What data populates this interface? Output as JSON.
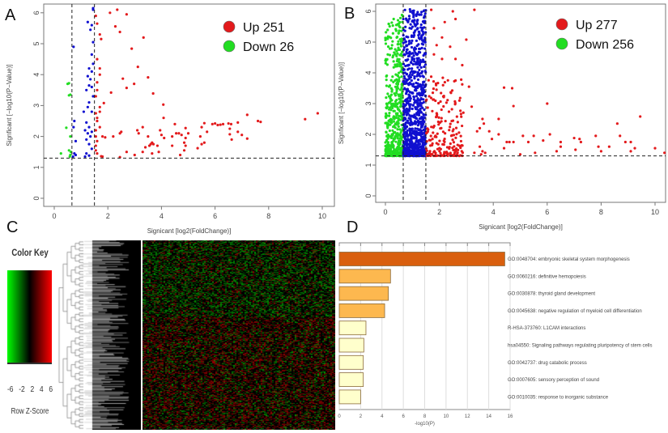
{
  "panels": {
    "A": "A",
    "B": "B",
    "C": "C",
    "D": "D"
  },
  "colors": {
    "up": "#e31a1c",
    "down": "#22dd22",
    "ns": "#1010d0",
    "bar_top": "#d95f0e",
    "bar_mid": "#fdb84f",
    "bar_low": "#ffffcc"
  },
  "chart_data": [
    {
      "panel": "A",
      "type": "scatter",
      "xlabel": "Signicant [log2(FoldChange)]",
      "ylabel": "Signficant [−log10(P−Value)]",
      "xlim": [
        0,
        10
      ],
      "ylim": [
        0,
        6
      ],
      "xticks": [
        0,
        2,
        4,
        6,
        8,
        10
      ],
      "yticks": [
        0,
        1,
        2,
        3,
        4,
        5,
        6
      ],
      "thresholds": {
        "x": [
          0.66,
          1.5
        ],
        "y": 1.3
      },
      "legend": [
        {
          "label": "Up 251",
          "color": "#e31a1c"
        },
        {
          "label": "Down 26",
          "color": "#22dd22"
        }
      ],
      "legend_position": "top-right",
      "series": [
        {
          "group": "up",
          "points": [
            [
              2.08,
              6.0
            ],
            [
              2.35,
              6.1
            ],
            [
              2.7,
              5.95
            ],
            [
              2.28,
              5.56
            ],
            [
              2.45,
              5.38
            ],
            [
              3.33,
              5.2
            ],
            [
              2.89,
              4.84
            ],
            [
              3.12,
              4.25
            ],
            [
              2.56,
              3.87
            ],
            [
              3.5,
              3.91
            ],
            [
              2.98,
              3.7
            ],
            [
              2.7,
              3.57
            ],
            [
              3.69,
              3.39
            ],
            [
              2.12,
              3.42
            ],
            [
              1.85,
              3.08
            ],
            [
              4.07,
              3.03
            ],
            [
              4.08,
              2.6
            ],
            [
              9.83,
              2.75
            ],
            [
              9.36,
              2.56
            ],
            [
              7.2,
              2.7
            ],
            [
              7.6,
              2.5
            ],
            [
              7.7,
              2.47
            ],
            [
              5.9,
              2.4
            ],
            [
              6.0,
              2.42
            ],
            [
              6.1,
              2.37
            ],
            [
              6.2,
              2.38
            ],
            [
              6.3,
              2.4
            ],
            [
              6.5,
              2.42
            ],
            [
              6.6,
              2.4
            ],
            [
              6.55,
              2.25
            ],
            [
              6.55,
              2.07
            ],
            [
              6.62,
              1.9
            ],
            [
              6.85,
              2.45
            ],
            [
              6.85,
              2.15
            ],
            [
              7.0,
              2.05
            ],
            [
              7.2,
              1.93
            ],
            [
              5.6,
              2.43
            ],
            [
              5.5,
              2.3
            ],
            [
              5.7,
              2.15
            ],
            [
              5.45,
              2.0
            ],
            [
              5.6,
              1.8
            ],
            [
              5.5,
              1.75
            ],
            [
              5.35,
              1.62
            ],
            [
              5.0,
              2.1
            ],
            [
              4.9,
              2.27
            ],
            [
              4.9,
              1.95
            ],
            [
              4.85,
              1.8
            ],
            [
              4.9,
              1.7
            ],
            [
              4.85,
              1.55
            ],
            [
              4.7,
              1.4
            ],
            [
              4.75,
              2.05
            ],
            [
              4.65,
              2.1
            ],
            [
              4.55,
              2.1
            ],
            [
              4.5,
              2.4
            ],
            [
              4.4,
              2.0
            ],
            [
              4.4,
              1.7
            ],
            [
              4.1,
              1.95
            ],
            [
              4.0,
              2.05
            ],
            [
              3.95,
              2.2
            ],
            [
              3.9,
              1.5
            ],
            [
              3.85,
              1.7
            ],
            [
              3.7,
              1.75
            ],
            [
              3.65,
              1.8
            ],
            [
              3.6,
              1.75
            ],
            [
              3.55,
              1.7
            ],
            [
              3.65,
              1.45
            ],
            [
              3.5,
              2.0
            ],
            [
              3.4,
              1.65
            ],
            [
              3.3,
              1.5
            ],
            [
              3.3,
              2.3
            ],
            [
              3.1,
              2.2
            ],
            [
              3.15,
              2.1
            ],
            [
              3.0,
              1.4
            ],
            [
              2.7,
              1.5
            ],
            [
              2.5,
              2.15
            ],
            [
              2.45,
              2.1
            ],
            [
              2.45,
              1.33
            ],
            [
              2.2,
              2.0
            ],
            [
              1.9,
              1.97
            ],
            [
              1.8,
              1.35
            ],
            [
              1.75,
              1.36
            ],
            [
              1.8,
              2.0
            ],
            [
              1.55,
              5.9
            ],
            [
              1.6,
              5.65
            ],
            [
              1.7,
              5.3
            ],
            [
              1.75,
              5.15
            ],
            [
              1.6,
              4.5
            ],
            [
              1.7,
              4.2
            ],
            [
              1.7,
              4.0
            ],
            [
              1.6,
              3.75
            ],
            [
              1.6,
              3.5
            ],
            [
              1.55,
              3.3
            ],
            [
              1.7,
              2.95
            ],
            [
              1.7,
              2.8
            ],
            [
              1.55,
              2.75
            ],
            [
              1.6,
              2.6
            ],
            [
              1.6,
              2.5
            ],
            [
              1.7,
              2.3
            ],
            [
              1.55,
              2.2
            ],
            [
              1.55,
              2.0
            ],
            [
              1.6,
              1.85
            ],
            [
              1.55,
              1.7
            ],
            [
              1.55,
              1.55
            ],
            [
              1.6,
              1.45
            ]
          ]
        },
        {
          "group": "down",
          "points": [
            [
              0.5,
              3.7
            ],
            [
              0.55,
              3.72
            ],
            [
              0.6,
              3.35
            ],
            [
              0.55,
              3.33
            ],
            [
              0.45,
              2.28
            ],
            [
              0.6,
              2.0
            ],
            [
              0.25,
              1.45
            ],
            [
              0.55,
              1.55
            ],
            [
              0.6,
              1.4
            ],
            [
              0.58,
              1.35
            ],
            [
              0.62,
              1.5
            ]
          ]
        },
        {
          "group": "ns",
          "points": [
            [
              1.45,
              6.15
            ],
            [
              1.45,
              6.1
            ],
            [
              1.25,
              5.7
            ],
            [
              1.4,
              5.6
            ],
            [
              1.35,
              5.45
            ],
            [
              1.45,
              5.05
            ],
            [
              0.72,
              4.9
            ],
            [
              1.4,
              4.65
            ],
            [
              1.45,
              4.35
            ],
            [
              1.3,
              4.2
            ],
            [
              1.4,
              4.1
            ],
            [
              1.25,
              3.95
            ],
            [
              1.35,
              3.85
            ],
            [
              1.3,
              3.65
            ],
            [
              1.4,
              3.6
            ],
            [
              1.2,
              3.5
            ],
            [
              1.45,
              3.3
            ],
            [
              1.3,
              3.1
            ],
            [
              1.25,
              2.95
            ],
            [
              1.4,
              2.8
            ],
            [
              1.1,
              2.8
            ],
            [
              0.75,
              2.5
            ],
            [
              0.72,
              2.3
            ],
            [
              1.2,
              2.45
            ],
            [
              1.3,
              2.3
            ],
            [
              1.15,
              2.2
            ],
            [
              1.4,
              2.15
            ],
            [
              1.25,
              2.1
            ],
            [
              1.35,
              2.0
            ],
            [
              1.2,
              1.9
            ],
            [
              0.8,
              1.85
            ],
            [
              1.3,
              1.75
            ],
            [
              1.4,
              1.6
            ],
            [
              0.75,
              1.45
            ],
            [
              0.8,
              1.4
            ],
            [
              1.2,
              1.45
            ],
            [
              1.15,
              1.35
            ],
            [
              1.3,
              1.38
            ],
            [
              0.7,
              1.35
            ]
          ]
        }
      ]
    },
    {
      "panel": "B",
      "type": "scatter",
      "xlabel": "Signicant [log2(FoldChange)]",
      "ylabel": "Signficant [−log10(P−Value)]",
      "xlim": [
        0,
        10
      ],
      "ylim": [
        0,
        6
      ],
      "xticks": [
        0,
        2,
        4,
        6,
        8,
        10
      ],
      "yticks": [
        0,
        1,
        2,
        3,
        4,
        5,
        6
      ],
      "thresholds": {
        "x": [
          0.66,
          1.5
        ],
        "y": 1.3
      },
      "legend": [
        {
          "label": "Up 277",
          "color": "#e31a1c"
        },
        {
          "label": "Down 256",
          "color": "#22dd22"
        }
      ],
      "legend_position": "top-right",
      "clusters": [
        {
          "group": "down",
          "x_range": [
            0,
            0.66
          ],
          "y_range": [
            1.3,
            5.9
          ],
          "n": 500
        },
        {
          "group": "ns",
          "x_range": [
            0.66,
            1.5
          ],
          "y_range": [
            1.3,
            6.1
          ],
          "n": 900
        },
        {
          "group": "up",
          "x_range": [
            1.5,
            2.9
          ],
          "y_range": [
            1.3,
            3.9
          ],
          "n": 200
        }
      ],
      "series": [
        {
          "group": "up",
          "points": [
            [
              1.7,
              6.05
            ],
            [
              2.5,
              6.0
            ],
            [
              3.3,
              6.05
            ],
            [
              2.6,
              5.75
            ],
            [
              2.2,
              5.65
            ],
            [
              1.8,
              5.45
            ],
            [
              2.1,
              5.15
            ],
            [
              3.0,
              5.08
            ],
            [
              1.9,
              4.9
            ],
            [
              2.4,
              4.85
            ],
            [
              1.8,
              4.6
            ],
            [
              2.1,
              4.45
            ],
            [
              2.6,
              4.45
            ],
            [
              2.85,
              4.25
            ],
            [
              2.6,
              3.75
            ],
            [
              3.1,
              3.55
            ],
            [
              4.4,
              3.52
            ],
            [
              4.7,
              3.5
            ],
            [
              3.2,
              2.9
            ],
            [
              4.75,
              2.92
            ],
            [
              6.0,
              3.0
            ],
            [
              9.45,
              2.58
            ],
            [
              8.6,
              2.35
            ],
            [
              4.2,
              2.5
            ],
            [
              3.65,
              2.35
            ],
            [
              3.6,
              2.5
            ],
            [
              3.5,
              2.2
            ],
            [
              3.4,
              2.1
            ],
            [
              3.85,
              2.1
            ],
            [
              4.2,
              2.0
            ],
            [
              3.95,
              1.85
            ],
            [
              4.5,
              1.75
            ],
            [
              4.6,
              1.75
            ],
            [
              4.75,
              1.75
            ],
            [
              5.1,
              1.95
            ],
            [
              5.5,
              1.95
            ],
            [
              5.3,
              1.75
            ],
            [
              5.85,
              1.8
            ],
            [
              6.1,
              2.0
            ],
            [
              6.5,
              1.75
            ],
            [
              6.5,
              1.6
            ],
            [
              7.0,
              1.88
            ],
            [
              7.2,
              1.85
            ],
            [
              7.25,
              1.75
            ],
            [
              7.8,
              1.95
            ],
            [
              8.7,
              1.95
            ],
            [
              8.9,
              1.75
            ],
            [
              9.1,
              1.75
            ],
            [
              7.9,
              1.6
            ],
            [
              8.3,
              1.6
            ],
            [
              8.0,
              1.45
            ],
            [
              9.1,
              1.45
            ],
            [
              9.25,
              1.55
            ],
            [
              10.0,
              1.55
            ],
            [
              10.35,
              1.4
            ],
            [
              6.35,
              1.45
            ],
            [
              7.05,
              1.5
            ],
            [
              5.55,
              1.4
            ],
            [
              5.0,
              1.35
            ],
            [
              4.4,
              1.55
            ],
            [
              3.7,
              1.4
            ],
            [
              3.6,
              1.45
            ],
            [
              3.55,
              1.35
            ],
            [
              3.5,
              1.6
            ],
            [
              3.3,
              1.4
            ]
          ]
        }
      ]
    },
    {
      "panel": "C",
      "type": "heatmap",
      "color_key": {
        "title": "Color Key",
        "xlabel": "Row Z-Score",
        "ticks": [
          "-6",
          "-2",
          "2",
          "4",
          "6"
        ],
        "low": "#00ff00",
        "mid": "#000000",
        "high": "#ff0000"
      }
    },
    {
      "panel": "D",
      "type": "bar",
      "orientation": "horizontal",
      "xlabel": "-log10(P)",
      "xlim": [
        0,
        16
      ],
      "xticks": [
        0,
        2,
        4,
        6,
        8,
        10,
        12,
        14,
        16
      ],
      "grid": true,
      "categories": [
        "GO:0048704: embryonic skeletal system morphogenesis",
        "GO:0060216: definitive hemopoiesis",
        "GO:0030878: thyroid gland development",
        "GO:0045638: negative regulation of myeloid cell differentiation",
        "R-HSA-373760: L1CAM interactions",
        "hsa04550: Signaling pathways regulating pluripotency of stem cells",
        "GO:0042737: drug catabolic process",
        "GO:0007605: sensory perception of sound",
        "GO:0010035: response to inorganic substance"
      ],
      "values": [
        15.5,
        4.8,
        4.6,
        4.25,
        2.5,
        2.3,
        2.25,
        2.25,
        2.0
      ]
    }
  ]
}
